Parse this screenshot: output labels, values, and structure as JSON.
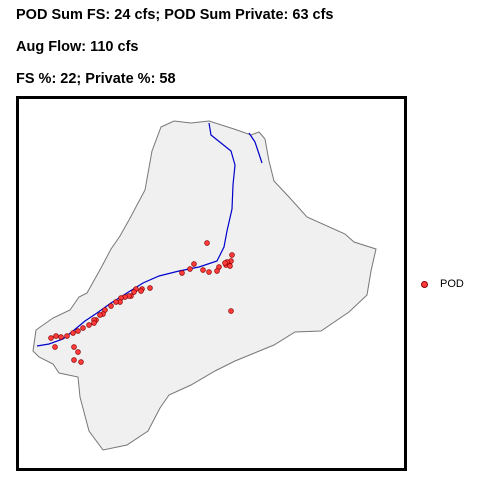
{
  "header": {
    "line1": "POD Sum FS: 24 cfs; POD Sum Private: 63 cfs",
    "line2": "Aug Flow: 110 cfs",
    "line3": "FS %: 22; Private %: 58"
  },
  "legend": {
    "label": "POD"
  },
  "colors": {
    "watershed_fill": "#f0f0f0",
    "watershed_outline": "#777777",
    "river": "#0000cc",
    "point_fill": "#ff3b3b",
    "point_outline": "#8b0000"
  },
  "chart_data": {
    "type": "scatter",
    "title": "",
    "xlabel": "",
    "ylabel": "",
    "axes": "none",
    "legend_placement": "right",
    "series": [
      {
        "name": "POD",
        "marker": "circle",
        "points": [
          [
            188,
            144
          ],
          [
            175,
            165
          ],
          [
            200,
            168
          ],
          [
            207,
            166
          ],
          [
            198,
            172
          ],
          [
            190,
            173
          ],
          [
            184,
            171
          ],
          [
            171,
            170
          ],
          [
            163,
            174
          ],
          [
            213,
            156
          ],
          [
            212,
            162
          ],
          [
            208,
            163
          ],
          [
            206,
            164
          ],
          [
            211,
            167
          ],
          [
            131,
            189
          ],
          [
            123,
            190
          ],
          [
            122,
            192
          ],
          [
            117,
            190
          ],
          [
            115,
            193
          ],
          [
            112,
            197
          ],
          [
            110,
            197
          ],
          [
            106,
            198
          ],
          [
            102,
            199
          ],
          [
            101,
            203
          ],
          [
            97,
            203
          ],
          [
            92,
            207
          ],
          [
            86,
            211
          ],
          [
            84,
            215
          ],
          [
            81,
            216
          ],
          [
            77,
            221
          ],
          [
            75,
            221
          ],
          [
            75,
            224
          ],
          [
            70,
            226
          ],
          [
            64,
            229
          ],
          [
            59,
            232
          ],
          [
            54,
            234
          ],
          [
            48,
            237
          ],
          [
            42,
            238
          ],
          [
            37,
            237
          ],
          [
            32,
            239
          ],
          [
            36,
            248
          ],
          [
            55,
            248
          ],
          [
            59,
            253
          ],
          [
            55,
            261
          ],
          [
            62,
            263
          ],
          [
            212,
            212
          ]
        ]
      }
    ]
  }
}
